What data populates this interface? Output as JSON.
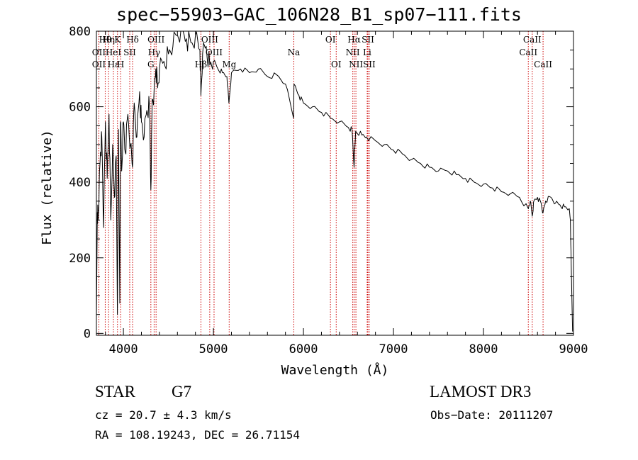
{
  "chart_data": {
    "type": "line",
    "title": "spec−55903−GAC_106N28_B1_sp07−111.fits",
    "xlabel": "Wavelength (Å)",
    "ylabel": "Flux (relative)",
    "xlim": [
      3700,
      9000
    ],
    "ylim": [
      -5,
      800
    ],
    "xticks": [
      4000,
      5000,
      6000,
      7000,
      8000,
      9000
    ],
    "yticks": [
      0,
      200,
      400,
      600,
      800
    ],
    "series": [
      {
        "name": "spectrum",
        "x": [
          3700,
          3710,
          3720,
          3730,
          3745,
          3760,
          3780,
          3800,
          3820,
          3840,
          3860,
          3880,
          3900,
          3920,
          3933,
          3945,
          3960,
          3968,
          3980,
          4000,
          4020,
          4050,
          4080,
          4101,
          4120,
          4150,
          4180,
          4200,
          4230,
          4260,
          4290,
          4305,
          4320,
          4340,
          4360,
          4380,
          4400,
          4450,
          4500,
          4550,
          4600,
          4650,
          4700,
          4750,
          4800,
          4850,
          4861,
          4880,
          4920,
          4960,
          5000,
          5050,
          5100,
          5150,
          5172,
          5200,
          5300,
          5400,
          5500,
          5600,
          5700,
          5800,
          5890,
          5895,
          5950,
          6000,
          6100,
          6200,
          6300,
          6400,
          6500,
          6540,
          6563,
          6580,
          6650,
          6700,
          6800,
          6900,
          7000,
          7100,
          7200,
          7300,
          7400,
          7500,
          7600,
          7700,
          7800,
          7900,
          8000,
          8100,
          8200,
          8300,
          8400,
          8498,
          8520,
          8542,
          8560,
          8600,
          8640,
          8662,
          8690,
          8750,
          8800,
          8850,
          8900,
          8950,
          8965,
          8975,
          8985,
          8990
        ],
        "y": [
          40,
          320,
          300,
          380,
          480,
          520,
          280,
          560,
          410,
          580,
          300,
          500,
          360,
          470,
          50,
          540,
          80,
          560,
          430,
          560,
          480,
          580,
          500,
          440,
          610,
          520,
          640,
          560,
          520,
          590,
          600,
          380,
          620,
          640,
          700,
          650,
          700,
          720,
          740,
          760,
          790,
          800,
          780,
          770,
          790,
          750,
          630,
          740,
          760,
          710,
          720,
          700,
          690,
          680,
          610,
          690,
          700,
          690,
          700,
          680,
          685,
          660,
          570,
          660,
          630,
          610,
          600,
          585,
          570,
          560,
          545,
          540,
          440,
          535,
          525,
          520,
          510,
          500,
          485,
          475,
          460,
          450,
          440,
          430,
          430,
          420,
          410,
          400,
          395,
          385,
          375,
          370,
          360,
          330,
          350,
          310,
          350,
          360,
          345,
          320,
          350,
          360,
          345,
          340,
          335,
          330,
          300,
          180,
          60,
          5
        ]
      }
    ],
    "line_markers": [
      {
        "label": "Hθ",
        "x": 3798,
        "row": 1
      },
      {
        "label": "OII",
        "x": 3727,
        "row": 2
      },
      {
        "label": "OII",
        "x": 3727,
        "row": 3
      },
      {
        "label": "Hη",
        "x": 3835,
        "row": 1
      },
      {
        "label": "HeI",
        "x": 3889,
        "row": 2
      },
      {
        "label": "Hε",
        "x": 3889,
        "row": 3
      },
      {
        "label": "K",
        "x": 3934,
        "row": 1
      },
      {
        "label": "SII",
        "x": 4070,
        "row": 2
      },
      {
        "label": "H",
        "x": 3969,
        "row": 3
      },
      {
        "label": "Hδ",
        "x": 4102,
        "row": 1
      },
      {
        "label": "OIII",
        "x": 4363,
        "row": 1
      },
      {
        "label": "Hγ",
        "x": 4341,
        "row": 2
      },
      {
        "label": "G",
        "x": 4305,
        "row": 3
      },
      {
        "label": "OIII",
        "x": 4959,
        "row": 1
      },
      {
        "label": "OIII",
        "x": 5007,
        "row": 2
      },
      {
        "label": "Hβ",
        "x": 4861,
        "row": 3
      },
      {
        "label": "Mg",
        "x": 5175,
        "row": 3
      },
      {
        "label": "Na",
        "x": 5893,
        "row": 2
      },
      {
        "label": "OI",
        "x": 6300,
        "row": 1
      },
      {
        "label": "OI",
        "x": 6364,
        "row": 3
      },
      {
        "label": "Hα",
        "x": 6563,
        "row": 1
      },
      {
        "label": "SII",
        "x": 6716,
        "row": 1
      },
      {
        "label": "NII",
        "x": 6548,
        "row": 2
      },
      {
        "label": "Li",
        "x": 6708,
        "row": 2
      },
      {
        "label": "NII",
        "x": 6583,
        "row": 3
      },
      {
        "label": "SII",
        "x": 6731,
        "row": 3
      },
      {
        "label": "CaII",
        "x": 8542,
        "row": 1
      },
      {
        "label": "CaII",
        "x": 8498,
        "row": 2
      },
      {
        "label": "CaII",
        "x": 8662,
        "row": 3
      }
    ],
    "vlines": [
      3727,
      3798,
      3835,
      3889,
      3934,
      3969,
      4070,
      4102,
      4305,
      4341,
      4363,
      4861,
      4959,
      5007,
      5175,
      5893,
      6300,
      6364,
      6548,
      6563,
      6583,
      6708,
      6716,
      6731,
      8498,
      8542,
      8662
    ]
  },
  "info": {
    "object_class": "STAR",
    "subclass": "G7",
    "redshift_text": "cz = 20.7 ± 4.3 km/s",
    "coords_text": "RA = 108.19243, DEC =  26.71154",
    "survey": "LAMOST DR3",
    "obs_date": "Obs−Date: 20111207"
  },
  "colors": {
    "line": "#000000",
    "marker": "#cc0000"
  }
}
